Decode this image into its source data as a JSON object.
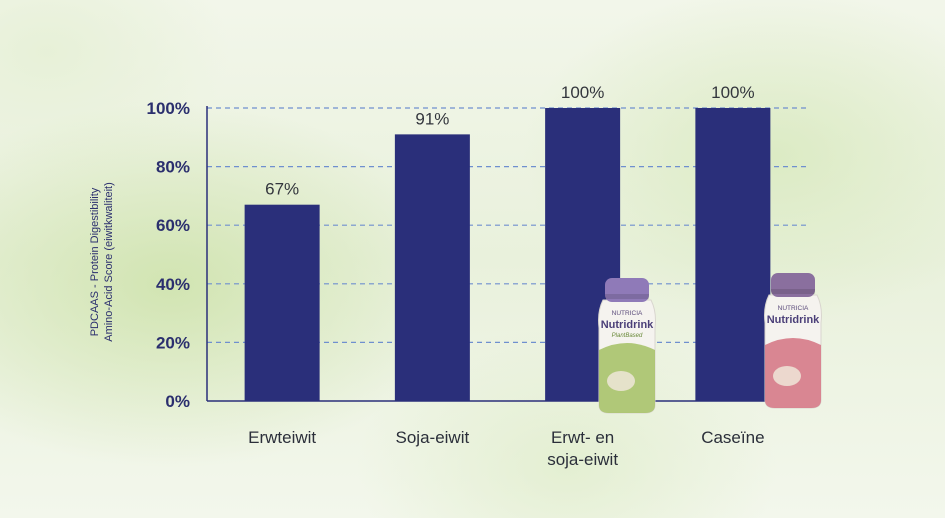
{
  "chart_data": {
    "type": "bar",
    "ylabel_line1": "PDCAAS - Protein Digestibility",
    "ylabel_line2": "Amino-Acid Score  (eiwitkwaliteit)",
    "categories": [
      [
        "Erwteiwit"
      ],
      [
        "Soja-eiwit"
      ],
      [
        "Erwt- en",
        "soja-eiwit"
      ],
      [
        "Caseïne"
      ]
    ],
    "values": [
      67,
      91,
      100,
      100
    ],
    "value_labels": [
      "67%",
      "91%",
      "100%",
      "100%"
    ],
    "yticks": [
      "0%",
      "20%",
      "40%",
      "60%",
      "80%",
      "100%"
    ],
    "ylim": [
      0,
      100
    ],
    "grid": true,
    "bar_color": "#2a2f7a"
  },
  "products": [
    {
      "brand": "NUTRICIA",
      "name": "Nutridrink",
      "variant": "PlantBased",
      "cap_color": "#8f7ab8",
      "label_color": "#a8c36a"
    },
    {
      "brand": "NUTRICIA",
      "name": "Nutridrink",
      "variant": "",
      "cap_color": "#8a6f9e",
      "label_color": "#d67a87"
    }
  ]
}
